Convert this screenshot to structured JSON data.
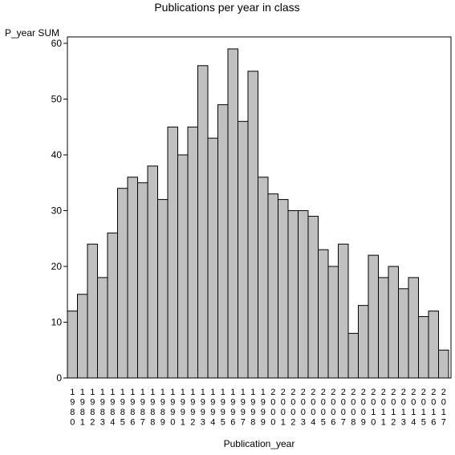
{
  "chart_data": {
    "type": "bar",
    "title": "Publications per year in class",
    "xlabel": "Publication_year",
    "ylabel": "P_year SUM",
    "ylim": [
      0,
      60
    ],
    "yticks": [
      0,
      10,
      20,
      30,
      40,
      50,
      60
    ],
    "grid": false,
    "bar_color": "#c0c0c0",
    "categories": [
      "1980",
      "1981",
      "1982",
      "1983",
      "1984",
      "1985",
      "1986",
      "1987",
      "1988",
      "1989",
      "1990",
      "1991",
      "1992",
      "1993",
      "1994",
      "1995",
      "1996",
      "1997",
      "1998",
      "1999",
      "2000",
      "2001",
      "2002",
      "2003",
      "2004",
      "2005",
      "2006",
      "2007",
      "2008",
      "2009",
      "2010",
      "2011",
      "2012",
      "2013",
      "2014",
      "2015",
      "2016",
      "2017"
    ],
    "values": [
      12,
      15,
      24,
      18,
      26,
      34,
      36,
      35,
      38,
      32,
      45,
      40,
      45,
      56,
      43,
      49,
      59,
      46,
      55,
      36,
      33,
      32,
      30,
      30,
      29,
      23,
      20,
      24,
      8,
      13,
      22,
      18,
      20,
      16,
      18,
      11,
      12,
      5
    ]
  }
}
